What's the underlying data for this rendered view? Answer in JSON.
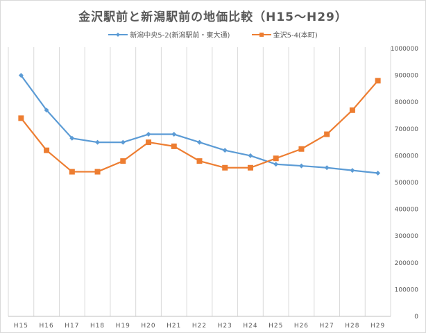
{
  "chart_data": {
    "type": "line",
    "title": "金沢駅前と新潟駅前の地価比較（H15～H29）",
    "categories": [
      "H15",
      "H16",
      "H17",
      "H18",
      "H19",
      "H20",
      "H21",
      "H22",
      "H23",
      "H24",
      "H25",
      "H26",
      "H27",
      "H28",
      "H29"
    ],
    "series": [
      {
        "name": "新潟中央5-2(新潟駅前・東大通)",
        "color": "#5b9bd5",
        "marker": "diamond",
        "values": [
          900000,
          770000,
          665000,
          650000,
          650000,
          680000,
          680000,
          650000,
          620000,
          600000,
          568000,
          562000,
          555000,
          545000,
          535000
        ]
      },
      {
        "name": "金沢5-4(本町)",
        "color": "#ed7d31",
        "marker": "square",
        "values": [
          740000,
          620000,
          540000,
          540000,
          580000,
          650000,
          635000,
          580000,
          555000,
          555000,
          590000,
          625000,
          680000,
          770000,
          880000
        ]
      }
    ],
    "ylim": [
      0,
      1000000
    ],
    "yticks": [
      0,
      100000,
      200000,
      300000,
      400000,
      500000,
      600000,
      700000,
      800000,
      900000,
      1000000
    ],
    "yaxis_position": "right",
    "grid": "vertical",
    "legend_position": "top",
    "xlabel": "",
    "ylabel": ""
  }
}
